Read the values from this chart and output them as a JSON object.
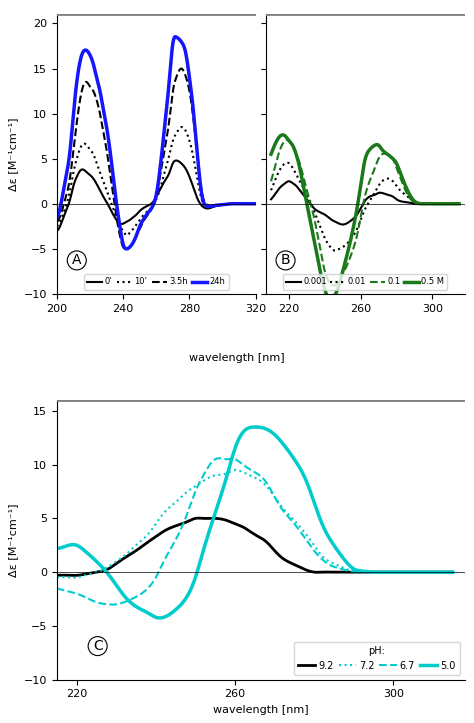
{
  "panel_A": {
    "xlim": [
      200,
      320
    ],
    "ylim": [
      -10,
      21
    ],
    "yticks": [
      -10,
      -5,
      0,
      5,
      10,
      15,
      20
    ],
    "xticks": [
      200,
      240,
      280,
      320
    ],
    "ylabel": "Δε [M⁻¹cm⁻¹]",
    "label": "A",
    "curves": {
      "t0": {
        "color": "black",
        "ls": "solid",
        "lw": 1.5,
        "x": [
          200,
          203,
          205,
          208,
          210,
          212,
          215,
          218,
          220,
          222,
          224,
          226,
          228,
          230,
          232,
          234,
          236,
          238,
          240,
          242,
          244,
          246,
          248,
          250,
          252,
          255,
          258,
          260,
          262,
          265,
          268,
          270,
          272,
          275,
          278,
          280,
          282,
          285,
          288,
          290,
          295,
          300,
          305,
          310,
          315,
          320
        ],
        "y": [
          -3.0,
          -2.0,
          -1.0,
          0.5,
          2.0,
          3.0,
          3.8,
          3.5,
          3.2,
          2.8,
          2.2,
          1.5,
          0.8,
          0.2,
          -0.5,
          -1.2,
          -1.8,
          -2.2,
          -2.2,
          -2.0,
          -1.8,
          -1.5,
          -1.2,
          -0.8,
          -0.5,
          -0.2,
          0.2,
          0.8,
          1.5,
          2.5,
          3.5,
          4.5,
          4.8,
          4.5,
          3.8,
          3.0,
          2.0,
          0.5,
          -0.3,
          -0.5,
          -0.3,
          -0.1,
          0.0,
          0.0,
          0.0,
          0.0
        ]
      },
      "t10": {
        "color": "black",
        "ls": "dotted",
        "lw": 1.5,
        "x": [
          200,
          203,
          205,
          208,
          210,
          212,
          215,
          218,
          220,
          222,
          224,
          226,
          228,
          230,
          232,
          234,
          236,
          238,
          240,
          242,
          244,
          246,
          248,
          250,
          252,
          255,
          258,
          260,
          262,
          265,
          268,
          270,
          272,
          275,
          278,
          280,
          282,
          285,
          288,
          290,
          295,
          300,
          305,
          310,
          315,
          320
        ],
        "y": [
          -2.5,
          -1.5,
          -0.5,
          1.5,
          3.5,
          5.0,
          6.5,
          6.5,
          6.0,
          5.5,
          4.5,
          3.5,
          2.5,
          1.5,
          0.5,
          -0.5,
          -1.5,
          -2.5,
          -3.0,
          -3.5,
          -3.2,
          -2.8,
          -2.3,
          -1.8,
          -1.3,
          -0.8,
          -0.2,
          0.5,
          1.5,
          3.5,
          5.5,
          7.0,
          7.8,
          8.5,
          8.0,
          7.0,
          5.5,
          2.5,
          0.2,
          -0.2,
          -0.2,
          -0.1,
          0.0,
          0.0,
          0.0,
          0.0
        ]
      },
      "t35h": {
        "color": "black",
        "ls": "dashed",
        "lw": 1.5,
        "x": [
          200,
          203,
          205,
          208,
          210,
          212,
          215,
          218,
          220,
          222,
          224,
          226,
          228,
          230,
          232,
          234,
          236,
          238,
          240,
          242,
          244,
          246,
          248,
          250,
          252,
          255,
          258,
          260,
          262,
          265,
          268,
          270,
          272,
          275,
          278,
          280,
          282,
          285,
          288,
          290,
          295,
          300,
          305,
          310,
          315,
          320
        ],
        "y": [
          -2.0,
          -0.8,
          0.5,
          3.0,
          6.0,
          9.0,
          12.5,
          13.5,
          13.0,
          12.5,
          11.5,
          10.0,
          8.0,
          6.0,
          3.5,
          1.0,
          -1.5,
          -3.5,
          -4.8,
          -5.0,
          -4.8,
          -4.3,
          -3.5,
          -2.8,
          -2.0,
          -1.2,
          -0.2,
          1.0,
          2.8,
          6.0,
          9.5,
          12.5,
          14.0,
          15.0,
          14.0,
          12.5,
          10.0,
          5.0,
          0.8,
          0.0,
          -0.3,
          -0.1,
          0.0,
          0.0,
          0.0,
          0.0
        ]
      },
      "t24h": {
        "color": "#1515ff",
        "ls": "solid",
        "lw": 2.5,
        "x": [
          200,
          203,
          205,
          208,
          210,
          212,
          215,
          218,
          220,
          222,
          224,
          226,
          228,
          230,
          232,
          234,
          236,
          238,
          240,
          242,
          244,
          246,
          248,
          250,
          252,
          255,
          258,
          260,
          262,
          265,
          268,
          270,
          272,
          275,
          278,
          280,
          282,
          285,
          288,
          290,
          295,
          300,
          305,
          310,
          315,
          320
        ],
        "y": [
          -1.5,
          0.5,
          2.5,
          6.0,
          10.0,
          13.5,
          16.5,
          17.0,
          16.5,
          15.5,
          14.0,
          12.5,
          10.5,
          8.5,
          6.0,
          3.0,
          0.0,
          -2.5,
          -4.5,
          -5.0,
          -4.8,
          -4.3,
          -3.5,
          -2.5,
          -1.8,
          -1.0,
          -0.2,
          1.0,
          3.5,
          8.5,
          14.0,
          17.8,
          18.5,
          18.0,
          16.5,
          14.0,
          11.0,
          5.0,
          0.5,
          -0.2,
          -0.2,
          -0.1,
          0.0,
          0.0,
          0.0,
          0.0
        ]
      }
    }
  },
  "panel_B": {
    "xlim": [
      207,
      318
    ],
    "ylim": [
      -10,
      21
    ],
    "yticks": [
      -10,
      -5,
      0,
      5,
      10,
      15,
      20
    ],
    "xticks": [
      220,
      260,
      300
    ],
    "ylabel": "",
    "label": "B",
    "curves": {
      "c001": {
        "color": "black",
        "ls": "solid",
        "lw": 1.5,
        "x": [
          210,
          212,
          215,
          218,
          220,
          222,
          224,
          226,
          228,
          230,
          232,
          234,
          236,
          238,
          240,
          242,
          244,
          246,
          248,
          250,
          252,
          255,
          258,
          260,
          262,
          265,
          268,
          270,
          272,
          275,
          278,
          280,
          282,
          285,
          288,
          290,
          295,
          300,
          305,
          310,
          315
        ],
        "y": [
          0.5,
          1.0,
          1.8,
          2.3,
          2.5,
          2.3,
          2.0,
          1.5,
          1.0,
          0.5,
          0.0,
          -0.5,
          -0.8,
          -1.0,
          -1.2,
          -1.5,
          -1.8,
          -2.0,
          -2.2,
          -2.3,
          -2.2,
          -1.8,
          -1.2,
          -0.5,
          0.2,
          0.8,
          1.0,
          1.2,
          1.2,
          1.0,
          0.8,
          0.5,
          0.3,
          0.2,
          0.1,
          0.0,
          0.0,
          0.0,
          0.0,
          0.0,
          0.0
        ]
      },
      "c01": {
        "color": "black",
        "ls": "dotted",
        "lw": 1.5,
        "x": [
          210,
          212,
          215,
          218,
          220,
          222,
          224,
          226,
          228,
          230,
          232,
          234,
          236,
          238,
          240,
          242,
          244,
          246,
          248,
          250,
          252,
          255,
          258,
          260,
          262,
          265,
          268,
          270,
          272,
          275,
          278,
          280,
          282,
          285,
          288,
          290,
          295,
          300,
          305,
          310,
          315
        ],
        "y": [
          1.5,
          2.5,
          3.8,
          4.5,
          4.5,
          4.0,
          3.3,
          2.5,
          1.8,
          1.0,
          0.2,
          -0.8,
          -1.8,
          -2.8,
          -3.8,
          -4.5,
          -5.0,
          -5.2,
          -5.0,
          -4.8,
          -4.5,
          -3.8,
          -2.8,
          -1.8,
          -0.8,
          0.3,
          1.3,
          2.0,
          2.5,
          2.8,
          2.5,
          2.0,
          1.5,
          1.0,
          0.5,
          0.2,
          0.0,
          0.0,
          0.0,
          0.0,
          0.0
        ]
      },
      "c1": {
        "color": "#1a7a1a",
        "ls": "dashed",
        "lw": 1.5,
        "x": [
          210,
          212,
          215,
          218,
          220,
          222,
          224,
          226,
          228,
          230,
          232,
          234,
          236,
          238,
          240,
          242,
          244,
          246,
          248,
          250,
          252,
          255,
          258,
          260,
          262,
          265,
          268,
          270,
          272,
          275,
          278,
          280,
          282,
          285,
          288,
          290,
          295,
          300,
          305,
          310,
          315
        ],
        "y": [
          2.5,
          4.0,
          6.0,
          7.0,
          7.0,
          6.5,
          5.5,
          4.5,
          3.0,
          1.5,
          0.0,
          -1.5,
          -3.5,
          -5.5,
          -7.5,
          -8.5,
          -9.0,
          -9.0,
          -8.5,
          -7.8,
          -7.0,
          -5.5,
          -3.5,
          -1.5,
          0.5,
          2.5,
          4.0,
          5.0,
          5.5,
          5.5,
          5.0,
          4.0,
          3.0,
          1.5,
          0.5,
          0.2,
          0.0,
          0.0,
          0.0,
          0.0,
          0.0
        ]
      },
      "c5": {
        "color": "#1a7a1a",
        "ls": "solid",
        "lw": 2.5,
        "x": [
          210,
          212,
          215,
          218,
          220,
          222,
          224,
          226,
          228,
          230,
          232,
          234,
          236,
          238,
          240,
          242,
          244,
          246,
          248,
          250,
          252,
          255,
          258,
          260,
          262,
          265,
          268,
          270,
          272,
          275,
          278,
          280,
          282,
          285,
          288,
          290,
          295,
          300,
          305,
          310,
          315
        ],
        "y": [
          5.5,
          6.5,
          7.5,
          7.5,
          7.0,
          6.5,
          5.5,
          4.0,
          2.0,
          0.0,
          -2.0,
          -4.0,
          -6.0,
          -8.0,
          -9.5,
          -10.5,
          -10.5,
          -10.0,
          -9.0,
          -7.5,
          -6.0,
          -3.5,
          -0.5,
          2.0,
          4.5,
          6.0,
          6.5,
          6.5,
          6.0,
          5.5,
          5.0,
          4.5,
          3.5,
          2.0,
          0.8,
          0.3,
          0.0,
          0.0,
          0.0,
          0.0,
          0.0
        ]
      }
    }
  },
  "panel_C": {
    "xlim": [
      215,
      318
    ],
    "ylim": [
      -10,
      16
    ],
    "yticks": [
      -10,
      -5,
      0,
      5,
      10,
      15
    ],
    "xticks": [
      220,
      260,
      300
    ],
    "xlabel": "wavelength [nm]",
    "ylabel": "Δε [M⁻¹cm⁻¹]",
    "label": "C",
    "curves": {
      "ph92": {
        "color": "black",
        "ls": "solid",
        "lw": 2.0,
        "x": [
          215,
          218,
          220,
          222,
          225,
          228,
          230,
          232,
          235,
          238,
          240,
          242,
          245,
          248,
          250,
          252,
          255,
          258,
          260,
          262,
          265,
          268,
          270,
          272,
          275,
          278,
          280,
          282,
          285,
          288,
          290,
          292,
          295,
          298,
          300,
          305,
          310,
          315
        ],
        "y": [
          -0.3,
          -0.3,
          -0.3,
          -0.2,
          0.0,
          0.3,
          0.8,
          1.3,
          2.0,
          2.8,
          3.3,
          3.8,
          4.3,
          4.7,
          5.0,
          5.0,
          5.0,
          4.8,
          4.5,
          4.2,
          3.5,
          2.8,
          2.0,
          1.3,
          0.7,
          0.2,
          0.0,
          0.0,
          0.0,
          0.0,
          0.0,
          0.0,
          0.0,
          0.0,
          0.0,
          0.0,
          0.0,
          0.0
        ]
      },
      "ph72": {
        "color": "#00cccc",
        "ls": "dotted",
        "lw": 1.5,
        "x": [
          215,
          218,
          220,
          222,
          225,
          228,
          230,
          232,
          235,
          238,
          240,
          242,
          245,
          248,
          250,
          252,
          255,
          258,
          260,
          262,
          265,
          268,
          270,
          272,
          275,
          278,
          280,
          282,
          285,
          288,
          290,
          292,
          295,
          298,
          300,
          305,
          310,
          315
        ],
        "y": [
          -0.5,
          -0.5,
          -0.5,
          -0.3,
          0.0,
          0.5,
          1.0,
          1.5,
          2.5,
          3.5,
          4.5,
          5.5,
          6.5,
          7.5,
          8.0,
          8.5,
          9.0,
          9.2,
          9.5,
          9.3,
          8.8,
          8.0,
          7.0,
          6.0,
          4.8,
          3.5,
          2.5,
          1.5,
          0.8,
          0.3,
          0.1,
          0.0,
          0.0,
          0.0,
          0.0,
          0.0,
          0.0,
          0.0
        ]
      },
      "ph67": {
        "color": "#00cccc",
        "ls": "dashed",
        "lw": 1.5,
        "x": [
          215,
          218,
          220,
          222,
          225,
          228,
          230,
          232,
          235,
          238,
          240,
          242,
          245,
          248,
          250,
          252,
          255,
          258,
          260,
          262,
          265,
          268,
          270,
          272,
          275,
          278,
          280,
          282,
          285,
          288,
          290,
          292,
          295,
          298,
          300,
          305,
          310,
          315
        ],
        "y": [
          -1.5,
          -1.8,
          -2.0,
          -2.3,
          -2.8,
          -3.0,
          -3.0,
          -2.8,
          -2.3,
          -1.5,
          -0.5,
          1.0,
          3.0,
          5.5,
          7.5,
          9.0,
          10.5,
          10.5,
          10.5,
          10.0,
          9.3,
          8.3,
          7.0,
          5.8,
          4.5,
          3.0,
          2.0,
          1.2,
          0.5,
          0.2,
          0.0,
          0.0,
          0.0,
          0.0,
          0.0,
          0.0,
          0.0,
          0.0
        ]
      },
      "ph50": {
        "color": "#00cccc",
        "ls": "solid",
        "lw": 2.5,
        "x": [
          215,
          218,
          220,
          222,
          225,
          228,
          230,
          232,
          235,
          238,
          240,
          242,
          245,
          248,
          250,
          252,
          255,
          258,
          260,
          262,
          265,
          268,
          270,
          272,
          275,
          278,
          280,
          282,
          285,
          288,
          290,
          292,
          295,
          298,
          300,
          305,
          310,
          315
        ],
        "y": [
          2.2,
          2.5,
          2.5,
          2.0,
          1.0,
          -0.2,
          -1.2,
          -2.2,
          -3.2,
          -3.8,
          -4.2,
          -4.2,
          -3.5,
          -2.2,
          -0.5,
          2.0,
          5.5,
          9.0,
          11.5,
          13.0,
          13.5,
          13.3,
          12.8,
          12.0,
          10.5,
          8.5,
          6.5,
          4.5,
          2.5,
          1.0,
          0.3,
          0.1,
          0.0,
          0.0,
          0.0,
          0.0,
          0.0,
          0.0
        ]
      }
    }
  },
  "top_xlabel": "wavelength [nm]",
  "figure_bg": "white"
}
